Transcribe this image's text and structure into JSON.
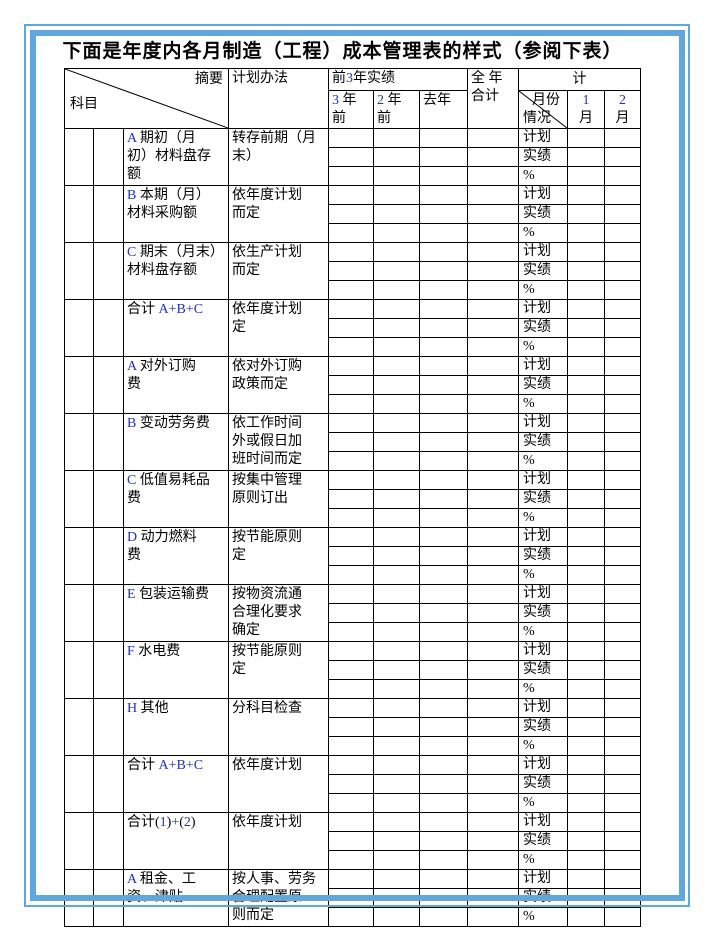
{
  "page": {
    "title": "下面是年度内各月制造（工程）成本管理表的样式（参阅下表）",
    "border_color": "#62a7dc",
    "latin_color": "#2230c3",
    "grid_color": "#000000"
  },
  "table": {
    "header": {
      "summary": "摘要",
      "subject": "科目",
      "method": "计划办法",
      "prev3": "前3年实绩",
      "col_3ago": "3 年\n前",
      "col_2ago": "2 年\n前",
      "col_last": "去年",
      "annual": "全 年\n合计",
      "total": "计",
      "diag_top": "月份",
      "diag_bottom": "情况",
      "m1": "1\n月",
      "m2": "2\n月"
    },
    "sub_labels": [
      "计划",
      "实绩",
      "%"
    ],
    "rows": [
      {
        "item": "A 期初（月\n初）材料盘存\n额",
        "method": "转存前期（月\n末）"
      },
      {
        "item": "B 本期（月）\n材料采购额",
        "method": "依年度计划\n而定"
      },
      {
        "item": "C 期末（月末）\n材料盘存额",
        "method": "依生产计划\n而定"
      },
      {
        "item": "合计 A+B+C",
        "method": "依年度计划\n定"
      },
      {
        "item": "A 对外订购\n费",
        "method": "依对外订购\n政策而定"
      },
      {
        "item": "B 变动劳务费",
        "method": "依工作时间\n外或假日加\n班时间而定"
      },
      {
        "item": "C 低值易耗品\n费",
        "method": "按集中管理\n原则订出"
      },
      {
        "item": "D 动力燃料\n费",
        "method": "按节能原则\n定"
      },
      {
        "item": "E 包装运输费",
        "method": "按物资流通\n合理化要求\n确定"
      },
      {
        "item": "F 水电费",
        "method": "按节能原则\n定"
      },
      {
        "item": "H 其他",
        "method": "分科目检查"
      },
      {
        "item": "合计 A+B+C",
        "method": "依年度计划"
      },
      {
        "item": "合计(1)+(2)",
        "method": "依年度计划"
      },
      {
        "item": "A 租金、工\n资、津贴",
        "method": "按人事、劳务\n合理配置原\n则而定"
      }
    ]
  }
}
